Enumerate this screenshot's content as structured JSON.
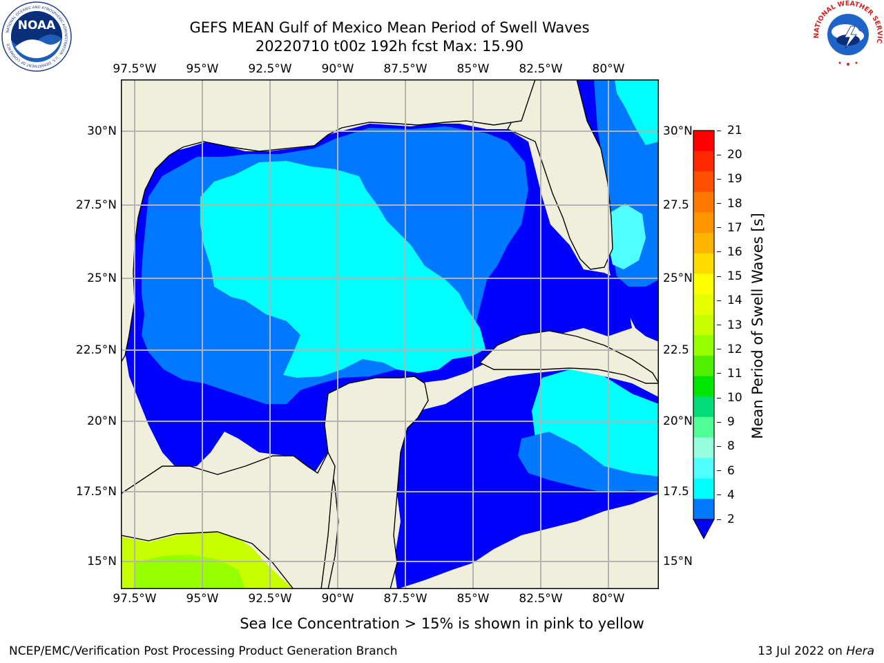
{
  "header": {
    "title_line1": "GEFS MEAN Gulf of Mexico Mean Period of Swell Waves",
    "title_line2": "20220710 t00z 192h fcst   Max: 15.90"
  },
  "logos": {
    "left": "NOAA",
    "left_ring_text": "NATIONAL OCEANIC AND ATMOSPHERIC ADMINISTRATION · U.S. DEPARTMENT OF COMMERCE",
    "right_ring_text": "NATIONAL WEATHER SERVICE"
  },
  "map": {
    "lon_labels": [
      "97.5°W",
      "95°W",
      "92.5°W",
      "90°W",
      "87.5°W",
      "85°W",
      "82.5°W",
      "80°W"
    ],
    "lat_labels_left": [
      "30°N",
      "27.5°N",
      "25°N",
      "22.5°N",
      "20°N",
      "17.5°N",
      "15°N"
    ],
    "lat_labels_right": [
      "30°N",
      "27.5",
      "25°N",
      "22.5",
      "20°N",
      "17.5",
      "15°N"
    ],
    "colors": {
      "land": "#efefdc",
      "grid": "#b4b4b4",
      "coast": "#000000"
    }
  },
  "colorbar": {
    "label": "Mean Period of Swell Waves [s]",
    "ticks": [
      "21",
      "20",
      "19",
      "18",
      "17",
      "16",
      "15",
      "14",
      "13",
      "12",
      "11",
      "10",
      "9",
      "8",
      "6",
      "4",
      "2"
    ],
    "colors": [
      "#ff0000",
      "#ff2800",
      "#ff5000",
      "#ff7800",
      "#ff9600",
      "#ffb400",
      "#ffdc00",
      "#ffff00",
      "#e6ff00",
      "#c8ff00",
      "#96ff00",
      "#50f000",
      "#00e600",
      "#00dc78",
      "#50ff96",
      "#96ffdc",
      "#50ffff",
      "#00ffff",
      "#0078ff"
    ],
    "extend_color": "#0000ff"
  },
  "caption": "Sea Ice Concentration > 15% is shown in pink to yellow",
  "footer": {
    "left": "NCEP/EMC/Verification Post Processing Product Generation Branch",
    "right_date": "13 Jul 2022 on ",
    "right_host": "Hera"
  }
}
